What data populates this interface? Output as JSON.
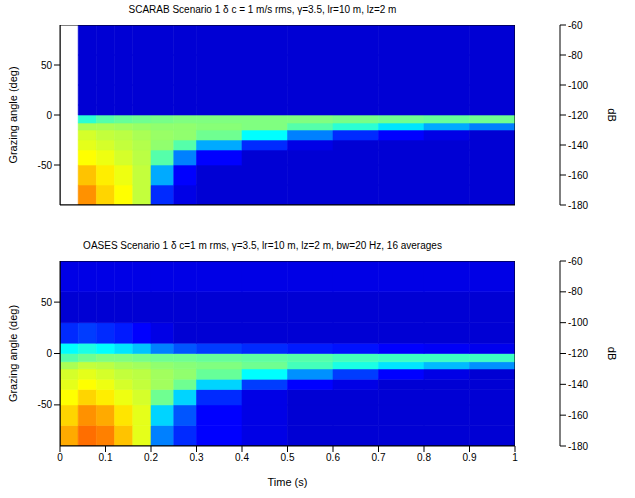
{
  "chart_data": [
    {
      "type": "heatmap",
      "title": "SCARAB Scenario 1 δ c = 1 m/s rms, γ=3.5, lr=10 m, lz=2 m",
      "ylabel": "Grazing angle (deg)",
      "xlim": [
        0,
        1
      ],
      "ylim": [
        -90,
        90
      ],
      "xticks": [
        0,
        0.1,
        0.2,
        0.3,
        0.4,
        0.5,
        0.6,
        0.7,
        0.8,
        0.9,
        1
      ],
      "yticks": [
        -50,
        0,
        50
      ],
      "tick_labels": "y",
      "x_edges": [
        0,
        0.04,
        0.08,
        0.12,
        0.16,
        0.2,
        0.25,
        0.3,
        0.4,
        0.5,
        0.6,
        0.7,
        0.8,
        0.9,
        1
      ],
      "y_edges": [
        -90,
        -70,
        -50,
        -35,
        -25,
        -15,
        -8,
        0,
        10,
        30,
        60,
        90
      ],
      "cells": [
        [
          null,
          -92,
          -100,
          -105,
          -112,
          -160,
          -168,
          -170,
          -170,
          -170,
          -170,
          -170,
          -170,
          -170
        ],
        [
          null,
          -98,
          -103,
          -107,
          -112,
          -145,
          -165,
          -170,
          -170,
          -170,
          -170,
          -170,
          -170,
          -170
        ],
        [
          null,
          -105,
          -107,
          -110,
          -113,
          -125,
          -150,
          -165,
          -170,
          -170,
          -170,
          -170,
          -170,
          -170
        ],
        [
          null,
          -108,
          -110,
          -112,
          -114,
          -118,
          -125,
          -145,
          -160,
          -168,
          -170,
          -170,
          -170,
          -170
        ],
        [
          null,
          -110,
          -112,
          -113,
          -115,
          -117,
          -118,
          -122,
          -135,
          -150,
          -160,
          -165,
          -168,
          -170
        ],
        [
          null,
          -115,
          -115,
          -116,
          -117,
          -118,
          -118,
          -119,
          -120,
          -125,
          -130,
          -138,
          -145,
          -150
        ],
        [
          null,
          -130,
          -125,
          -123,
          -122,
          -121,
          -120,
          -120,
          -120,
          -120,
          -121,
          -122,
          -123,
          -122
        ],
        [
          null,
          -170,
          -170,
          -170,
          -170,
          -170,
          -170,
          -170,
          -170,
          -170,
          -170,
          -170,
          -170,
          -170
        ],
        [
          null,
          -170,
          -170,
          -170,
          -170,
          -170,
          -170,
          -170,
          -170,
          -170,
          -170,
          -170,
          -170,
          -170
        ],
        [
          null,
          -170,
          -170,
          -170,
          -170,
          -170,
          -170,
          -170,
          -170,
          -170,
          -170,
          -170,
          -170,
          -170
        ],
        [
          null,
          -170,
          -170,
          -170,
          -170,
          -170,
          -170,
          -170,
          -170,
          -170,
          -170,
          -170,
          -170,
          -170
        ]
      ],
      "colorbar": {
        "label": "dB",
        "range": [
          -180,
          -60
        ],
        "ticks": [
          -180,
          -160,
          -140,
          -120,
          -100,
          -80,
          -60
        ]
      }
    },
    {
      "type": "heatmap",
      "title": "OASES Scenario 1 δ c=1 m rms, γ=3.5, lr=10 m, lz=2 m, bw=20 Hz, 16 averages",
      "ylabel": "Grazing angle (deg)",
      "xlabel": "Time (s)",
      "xlim": [
        0,
        1
      ],
      "ylim": [
        -90,
        90
      ],
      "xticks": [
        0,
        0.1,
        0.2,
        0.3,
        0.4,
        0.5,
        0.6,
        0.7,
        0.8,
        0.9,
        1
      ],
      "yticks": [
        -50,
        0,
        50
      ],
      "tick_labels": true,
      "x_edges": [
        0,
        0.04,
        0.08,
        0.12,
        0.16,
        0.2,
        0.25,
        0.3,
        0.4,
        0.5,
        0.6,
        0.7,
        0.8,
        0.9,
        1
      ],
      "y_edges": [
        -90,
        -70,
        -50,
        -35,
        -25,
        -15,
        -8,
        0,
        10,
        30,
        60,
        90
      ],
      "cells": [
        [
          -95,
          -88,
          -90,
          -98,
          -108,
          -150,
          -160,
          -165,
          -168,
          -170,
          -170,
          -170,
          -170,
          -170
        ],
        [
          -100,
          -92,
          -95,
          -102,
          -108,
          -140,
          -155,
          -165,
          -168,
          -170,
          -170,
          -170,
          -170,
          -170
        ],
        [
          -105,
          -100,
          -103,
          -107,
          -110,
          -122,
          -140,
          -160,
          -168,
          -170,
          -170,
          -170,
          -170,
          -170
        ],
        [
          -108,
          -105,
          -107,
          -110,
          -112,
          -116,
          -122,
          -140,
          -158,
          -165,
          -168,
          -170,
          -170,
          -170
        ],
        [
          -110,
          -108,
          -110,
          -112,
          -113,
          -116,
          -118,
          -123,
          -135,
          -148,
          -158,
          -165,
          -168,
          -170
        ],
        [
          -115,
          -112,
          -113,
          -115,
          -116,
          -118,
          -119,
          -120,
          -122,
          -127,
          -132,
          -138,
          -143,
          -148
        ],
        [
          -125,
          -122,
          -120,
          -120,
          -121,
          -122,
          -122,
          -123,
          -124,
          -125,
          -127,
          -128,
          -128,
          -128
        ],
        [
          -135,
          -132,
          -135,
          -138,
          -142,
          -150,
          -155,
          -158,
          -160,
          -162,
          -163,
          -165,
          -166,
          -167
        ],
        [
          -160,
          -158,
          -160,
          -162,
          -165,
          -168,
          -170,
          -170,
          -170,
          -170,
          -170,
          -170,
          -170,
          -170
        ],
        [
          -170,
          -170,
          -170,
          -170,
          -170,
          -170,
          -170,
          -170,
          -170,
          -170,
          -170,
          -170,
          -170,
          -170
        ],
        [
          -168,
          -168,
          -168,
          -168,
          -168,
          -168,
          -168,
          -168,
          -168,
          -168,
          -168,
          -168,
          -168,
          -168
        ]
      ],
      "colorbar": {
        "label": "dB",
        "range": [
          -180,
          -60
        ],
        "ticks": [
          -180,
          -160,
          -140,
          -120,
          -100,
          -80,
          -60
        ]
      }
    }
  ]
}
